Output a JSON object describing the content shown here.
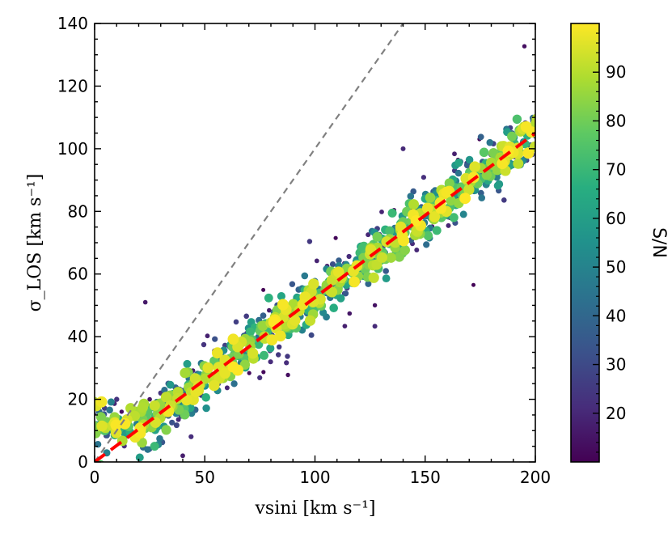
{
  "chart_data": {
    "type": "scatter",
    "title": "",
    "xlabel": "vsini [km s⁻¹]",
    "ylabel": "σ_LOS [km s⁻¹]",
    "xlim": [
      0,
      200
    ],
    "ylim": [
      0,
      140
    ],
    "xticks": [
      "0",
      "50",
      "100",
      "150",
      "200"
    ],
    "yticks": [
      "0",
      "20",
      "40",
      "60",
      "80",
      "100",
      "120",
      "140"
    ],
    "grid": false,
    "legend": "none",
    "colorbar": {
      "label": "S/N",
      "range": [
        10,
        100
      ],
      "ticks": [
        "20",
        "30",
        "40",
        "50",
        "60",
        "70",
        "80",
        "90"
      ],
      "colormap": "viridis"
    },
    "reference_lines": [
      {
        "name": "one-to-one",
        "slope": 1.0,
        "intercept": 0,
        "color": "#808080",
        "style": "dashed"
      },
      {
        "name": "best-fit",
        "slope": 0.525,
        "intercept": 0,
        "color": "#ff0000",
        "style": "dashed"
      }
    ],
    "points_summary": {
      "count": 900,
      "trend_slope": 0.525,
      "scatter_sd": 4.5,
      "low_velocity_floor": 15,
      "snr_range": [
        10,
        100
      ],
      "marker_size_scales_with_snr": true,
      "sample_points": [
        [
          2,
          15
        ],
        [
          10,
          20
        ],
        [
          25,
          20
        ],
        [
          30,
          22
        ],
        [
          45,
          26
        ],
        [
          60,
          32
        ],
        [
          75,
          40
        ],
        [
          100,
          52
        ],
        [
          125,
          65
        ],
        [
          150,
          80
        ],
        [
          175,
          92
        ],
        [
          200,
          104
        ],
        [
          23,
          51
        ],
        [
          140,
          100
        ],
        [
          40,
          2
        ]
      ]
    }
  }
}
